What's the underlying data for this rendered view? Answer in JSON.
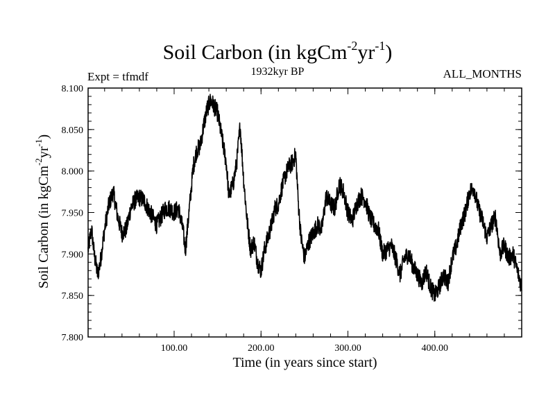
{
  "header": {
    "title_main": "Soil Carbon (in kgCm",
    "title_exp1": "-2",
    "title_mid": "yr",
    "title_exp2": "-1",
    "title_end": ")",
    "subtitle": "1932kyr BP",
    "expt": "Expt = tfmdf",
    "months": "ALL_MONTHS"
  },
  "axes": {
    "xlabel": "Time (in years since start)",
    "ylabel_main": "Soil Carbon (in kgCm",
    "ylabel_exp1": "-2",
    "ylabel_mid": "yr",
    "ylabel_exp2": "-1",
    "ylabel_end": ")"
  },
  "chart_data": {
    "type": "line",
    "title": "Soil Carbon (in kgCm-2yr-1)",
    "subtitle": "1932kyr BP",
    "xlabel": "Time (in years since start)",
    "ylabel": "Soil Carbon (in kgCm-2yr-1)",
    "xlim": [
      1,
      500
    ],
    "ylim": [
      7.8,
      8.1
    ],
    "x_ticks": [
      100,
      200,
      300,
      400
    ],
    "x_tick_labels": [
      "100.00",
      "200.00",
      "300.00",
      "400.00"
    ],
    "y_ticks": [
      7.8,
      7.85,
      7.9,
      7.95,
      8.0,
      8.05,
      8.1
    ],
    "y_tick_labels": [
      "7.800",
      "7.850",
      "7.900",
      "7.950",
      "8.000",
      "8.050",
      "8.100"
    ],
    "series": [
      {
        "name": "Soil Carbon",
        "x": [
          1,
          5,
          8,
          12,
          15,
          20,
          25,
          30,
          35,
          40,
          45,
          50,
          55,
          60,
          65,
          70,
          75,
          80,
          85,
          90,
          95,
          100,
          105,
          110,
          113,
          118,
          122,
          126,
          130,
          134,
          138,
          142,
          145,
          150,
          155,
          160,
          163,
          168,
          172,
          176,
          180,
          184,
          188,
          192,
          196,
          200,
          204,
          208,
          212,
          216,
          220,
          224,
          228,
          232,
          236,
          240,
          243,
          246,
          250,
          255,
          260,
          265,
          270,
          275,
          280,
          285,
          290,
          295,
          300,
          305,
          310,
          315,
          320,
          325,
          330,
          335,
          340,
          345,
          350,
          355,
          360,
          365,
          370,
          375,
          380,
          385,
          390,
          395,
          400,
          405,
          410,
          415,
          420,
          425,
          430,
          435,
          440,
          445,
          450,
          455,
          460,
          465,
          470,
          475,
          480,
          485,
          490,
          495,
          500
        ],
        "y": [
          7.905,
          7.93,
          7.9,
          7.875,
          7.89,
          7.93,
          7.96,
          7.975,
          7.945,
          7.925,
          7.93,
          7.955,
          7.965,
          7.968,
          7.965,
          7.955,
          7.945,
          7.935,
          7.945,
          7.955,
          7.955,
          7.95,
          7.955,
          7.93,
          7.905,
          7.96,
          8.005,
          8.025,
          8.03,
          8.055,
          8.075,
          8.085,
          8.08,
          8.07,
          8.04,
          8.01,
          7.97,
          7.985,
          8.01,
          8.055,
          7.99,
          7.94,
          7.905,
          7.915,
          7.89,
          7.88,
          7.905,
          7.92,
          7.935,
          7.955,
          7.96,
          7.98,
          7.995,
          8.005,
          8.01,
          8.02,
          7.96,
          7.92,
          7.895,
          7.915,
          7.925,
          7.935,
          7.93,
          7.97,
          7.96,
          7.955,
          7.985,
          7.975,
          7.95,
          7.94,
          7.96,
          7.97,
          7.965,
          7.945,
          7.935,
          7.93,
          7.9,
          7.905,
          7.91,
          7.895,
          7.875,
          7.895,
          7.9,
          7.885,
          7.875,
          7.865,
          7.88,
          7.86,
          7.85,
          7.86,
          7.875,
          7.865,
          7.895,
          7.91,
          7.935,
          7.95,
          7.975,
          7.98,
          7.955,
          7.94,
          7.92,
          7.935,
          7.945,
          7.9,
          7.91,
          7.895,
          7.9,
          7.88,
          7.86
        ]
      }
    ]
  }
}
